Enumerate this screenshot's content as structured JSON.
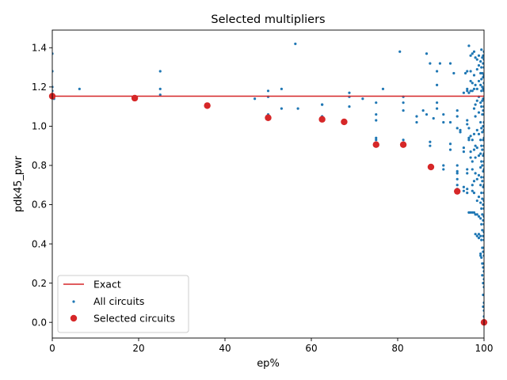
{
  "chart_data": {
    "type": "scatter",
    "title": "Selected multipliers",
    "xlabel": "ep%",
    "ylabel": "pdk45_pwr",
    "xlim": [
      0,
      100
    ],
    "ylim": [
      -0.08,
      1.49
    ],
    "x_ticks": [
      0,
      20,
      40,
      60,
      80,
      100
    ],
    "y_ticks": [
      0.0,
      0.2,
      0.4,
      0.6,
      0.8,
      1.0,
      1.2,
      1.4
    ],
    "x_tick_labels": [
      "0",
      "20",
      "40",
      "60",
      "80",
      "100"
    ],
    "y_tick_labels": [
      "0.0",
      "0.2",
      "0.4",
      "0.6",
      "0.8",
      "1.0",
      "1.2",
      "1.4"
    ],
    "grid": false,
    "legend": {
      "placement": "lower-left",
      "entries": [
        "Exact",
        "All circuits",
        "Selected circuits"
      ]
    },
    "colors": {
      "exact": "#d62728",
      "all": "#1f77b4",
      "selected": "#d62728"
    },
    "exact_line": {
      "name": "Exact",
      "y": 1.153
    },
    "series": [
      {
        "name": "All circuits",
        "points": [
          [
            0,
            1.37
          ],
          [
            0,
            1.28
          ],
          [
            0,
            1.2
          ],
          [
            0,
            1.18
          ],
          [
            0.2,
            1.16
          ],
          [
            0.4,
            1.14
          ],
          [
            6.3,
            1.19
          ],
          [
            25,
            1.28
          ],
          [
            25,
            1.19
          ],
          [
            25,
            1.16
          ],
          [
            46.9,
            1.14
          ],
          [
            50,
            1.18
          ],
          [
            50,
            1.15
          ],
          [
            50,
            1.06
          ],
          [
            53.1,
            1.19
          ],
          [
            53.1,
            1.09
          ],
          [
            56.3,
            1.42
          ],
          [
            56.9,
            1.09
          ],
          [
            62.5,
            1.11
          ],
          [
            62.5,
            1.11
          ],
          [
            62.5,
            1.05
          ],
          [
            62.5,
            1.03
          ],
          [
            68.8,
            1.17
          ],
          [
            68.8,
            1.15
          ],
          [
            68.8,
            1.1
          ],
          [
            71.9,
            1.14
          ],
          [
            75,
            1.12
          ],
          [
            75,
            1.06
          ],
          [
            75,
            1.03
          ],
          [
            75,
            0.94
          ],
          [
            75,
            0.93
          ],
          [
            76.6,
            1.19
          ],
          [
            80.5,
            1.38
          ],
          [
            81.3,
            1.15
          ],
          [
            81.3,
            1.12
          ],
          [
            81.3,
            1.08
          ],
          [
            81.3,
            0.93
          ],
          [
            81.3,
            0.91
          ],
          [
            84.4,
            1.05
          ],
          [
            84.4,
            1.02
          ],
          [
            85.9,
            1.08
          ],
          [
            86.7,
            1.37
          ],
          [
            86.7,
            1.06
          ],
          [
            87.5,
            1.32
          ],
          [
            87.5,
            0.92
          ],
          [
            87.5,
            0.9
          ],
          [
            87.5,
            0.8
          ],
          [
            88.3,
            1.04
          ],
          [
            89.1,
            1.28
          ],
          [
            89.1,
            1.21
          ],
          [
            89.1,
            1.12
          ],
          [
            89.1,
            1.09
          ],
          [
            89.8,
            1.32
          ],
          [
            90.6,
            1.06
          ],
          [
            90.6,
            1.02
          ],
          [
            90.6,
            0.8
          ],
          [
            90.6,
            0.78
          ],
          [
            92.2,
            1.32
          ],
          [
            92.2,
            1.02
          ],
          [
            92.2,
            0.91
          ],
          [
            92.2,
            0.88
          ],
          [
            93,
            1.27
          ],
          [
            93.8,
            1.08
          ],
          [
            93.8,
            1.05
          ],
          [
            93.8,
            0.99
          ],
          [
            93.8,
            0.8
          ],
          [
            93.8,
            0.77
          ],
          [
            93.8,
            0.76
          ],
          [
            93.8,
            0.73
          ],
          [
            93.8,
            0.7
          ],
          [
            93.8,
            0.68
          ],
          [
            94.5,
            0.98
          ],
          [
            94.5,
            0.97
          ],
          [
            95.3,
            1.17
          ],
          [
            95.3,
            0.89
          ],
          [
            95.3,
            0.87
          ],
          [
            95.3,
            0.69
          ],
          [
            95.3,
            0.67
          ],
          [
            95.7,
            1.27
          ],
          [
            96.1,
            1.28
          ],
          [
            96.1,
            1.19
          ],
          [
            96.1,
            1.18
          ],
          [
            96.1,
            1.03
          ],
          [
            96.1,
            1.01
          ],
          [
            96.1,
            0.78
          ],
          [
            96.1,
            0.76
          ],
          [
            96.1,
            0.68
          ],
          [
            96.1,
            0.66
          ],
          [
            96.5,
            1.41
          ],
          [
            96.5,
            1.17
          ],
          [
            96.5,
            0.99
          ],
          [
            96.5,
            0.94
          ],
          [
            96.5,
            0.93
          ],
          [
            96.5,
            0.56
          ],
          [
            96.5,
            0.56
          ],
          [
            96.9,
            1.36
          ],
          [
            96.9,
            1.28
          ],
          [
            96.9,
            1.23
          ],
          [
            96.9,
            1.18
          ],
          [
            96.9,
            0.95
          ],
          [
            96.9,
            0.87
          ],
          [
            96.9,
            0.84
          ],
          [
            96.9,
            0.56
          ],
          [
            97.3,
            1.37
          ],
          [
            97.3,
            1.22
          ],
          [
            97.3,
            1.18
          ],
          [
            97.3,
            0.93
          ],
          [
            97.3,
            0.82
          ],
          [
            97.3,
            0.78
          ],
          [
            97.3,
            0.7
          ],
          [
            97.3,
            0.67
          ],
          [
            97.3,
            0.56
          ],
          [
            97.7,
            1.38
          ],
          [
            97.7,
            1.26
          ],
          [
            97.7,
            1.19
          ],
          [
            97.7,
            1.09
          ],
          [
            97.7,
            0.96
          ],
          [
            97.7,
            0.88
          ],
          [
            97.7,
            0.72
          ],
          [
            97.7,
            0.66
          ],
          [
            97.7,
            0.56
          ],
          [
            98,
            1.35
          ],
          [
            98,
            1.21
          ],
          [
            98,
            1.11
          ],
          [
            98,
            1.05
          ],
          [
            98,
            0.9
          ],
          [
            98,
            0.84
          ],
          [
            98,
            0.76
          ],
          [
            98,
            0.55
          ],
          [
            98,
            0.45
          ],
          [
            98.4,
            1.34
          ],
          [
            98.4,
            1.29
          ],
          [
            98.4,
            1.19
          ],
          [
            98.4,
            1.13
          ],
          [
            98.4,
            0.98
          ],
          [
            98.4,
            0.89
          ],
          [
            98.4,
            0.73
          ],
          [
            98.4,
            0.62
          ],
          [
            98.4,
            0.55
          ],
          [
            98.4,
            0.44
          ],
          [
            98.8,
            1.36
          ],
          [
            98.8,
            1.31
          ],
          [
            98.8,
            1.23
          ],
          [
            98.8,
            1.15
          ],
          [
            98.8,
            1.07
          ],
          [
            98.8,
            0.96
          ],
          [
            98.8,
            0.85
          ],
          [
            98.8,
            0.75
          ],
          [
            98.8,
            0.64
          ],
          [
            98.8,
            0.54
          ],
          [
            98.8,
            0.45
          ],
          [
            98.8,
            0.43
          ],
          [
            99.2,
            1.33
          ],
          [
            99.2,
            1.27
          ],
          [
            99.2,
            1.21
          ],
          [
            99.2,
            1.12
          ],
          [
            99.2,
            1.02
          ],
          [
            99.2,
            0.93
          ],
          [
            99.2,
            0.86
          ],
          [
            99.2,
            0.79
          ],
          [
            99.2,
            0.7
          ],
          [
            99.2,
            0.61
          ],
          [
            99.2,
            0.53
          ],
          [
            99.2,
            0.44
          ],
          [
            99.2,
            0.35
          ],
          [
            99.2,
            0.34
          ],
          [
            99.4,
            1.39
          ],
          [
            99.4,
            1.3
          ],
          [
            99.4,
            1.24
          ],
          [
            99.4,
            1.18
          ],
          [
            99.4,
            1.1
          ],
          [
            99.4,
            0.99
          ],
          [
            99.4,
            0.9
          ],
          [
            99.4,
            0.82
          ],
          [
            99.4,
            0.74
          ],
          [
            99.4,
            0.66
          ],
          [
            99.4,
            0.58
          ],
          [
            99.4,
            0.5
          ],
          [
            99.4,
            0.42
          ],
          [
            99.4,
            0.33
          ],
          [
            99.6,
            1.35
          ],
          [
            99.6,
            1.27
          ],
          [
            99.6,
            1.2
          ],
          [
            99.6,
            1.13
          ],
          [
            99.6,
            1.06
          ],
          [
            99.6,
            0.97
          ],
          [
            99.6,
            0.88
          ],
          [
            99.6,
            0.8
          ],
          [
            99.6,
            0.72
          ],
          [
            99.6,
            0.63
          ],
          [
            99.6,
            0.55
          ],
          [
            99.6,
            0.47
          ],
          [
            99.6,
            0.38
          ],
          [
            99.6,
            0.3
          ],
          [
            99.6,
            0.24
          ],
          [
            99.8,
            1.36
          ],
          [
            99.8,
            1.32
          ],
          [
            99.8,
            1.25
          ],
          [
            99.8,
            1.19
          ],
          [
            99.8,
            1.14
          ],
          [
            99.8,
            1.08
          ],
          [
            99.8,
            1.0
          ],
          [
            99.8,
            0.93
          ],
          [
            99.8,
            0.85
          ],
          [
            99.8,
            0.77
          ],
          [
            99.8,
            0.69
          ],
          [
            99.8,
            0.6
          ],
          [
            99.8,
            0.52
          ],
          [
            99.8,
            0.44
          ],
          [
            99.8,
            0.36
          ],
          [
            99.8,
            0.28
          ],
          [
            99.8,
            0.2
          ],
          [
            99.8,
            0.14
          ],
          [
            99.8,
            0.08
          ],
          [
            100,
            1.38
          ],
          [
            100,
            1.34
          ],
          [
            100,
            1.3
          ],
          [
            100,
            1.26
          ],
          [
            100,
            1.22
          ],
          [
            100,
            1.18
          ],
          [
            100,
            1.14
          ],
          [
            100,
            1.1
          ],
          [
            100,
            1.06
          ],
          [
            100,
            1.02
          ],
          [
            100,
            0.98
          ],
          [
            100,
            0.94
          ],
          [
            100,
            0.9
          ],
          [
            100,
            0.86
          ],
          [
            100,
            0.82
          ],
          [
            100,
            0.78
          ],
          [
            100,
            0.74
          ],
          [
            100,
            0.7
          ],
          [
            100,
            0.66
          ],
          [
            100,
            0.62
          ],
          [
            100,
            0.58
          ],
          [
            100,
            0.54
          ],
          [
            100,
            0.5
          ],
          [
            100,
            0.46
          ],
          [
            100,
            0.42
          ],
          [
            100,
            0.38
          ],
          [
            100,
            0.34
          ],
          [
            100,
            0.3
          ],
          [
            100,
            0.26
          ],
          [
            100,
            0.22
          ],
          [
            100,
            0.18
          ],
          [
            100,
            0.14
          ],
          [
            100,
            0.1
          ],
          [
            100,
            0.06
          ],
          [
            100,
            0.03
          ],
          [
            100,
            0.0
          ]
        ]
      },
      {
        "name": "Selected circuits",
        "points": [
          [
            0,
            1.153
          ],
          [
            19.1,
            1.143
          ],
          [
            35.9,
            1.105
          ],
          [
            50,
            1.043
          ],
          [
            62.5,
            1.035
          ],
          [
            67.6,
            1.022
          ],
          [
            75,
            0.906
          ],
          [
            81.3,
            0.906
          ],
          [
            87.7,
            0.792
          ],
          [
            93.8,
            0.668
          ],
          [
            100,
            0.0
          ]
        ]
      }
    ]
  }
}
